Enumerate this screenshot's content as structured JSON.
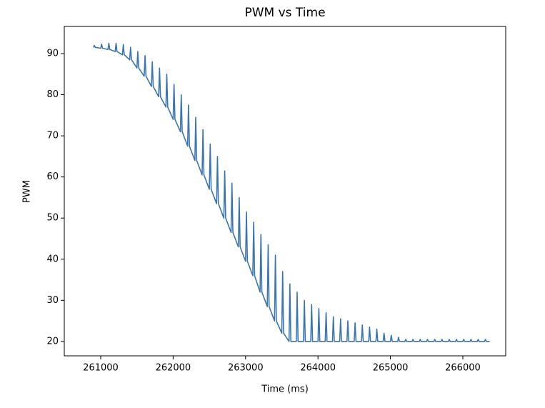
{
  "chart_data": {
    "type": "line",
    "title": "PWM vs Time",
    "xlabel": "Time (ms)",
    "ylabel": "PWM",
    "color": "#3b75af",
    "xlim": [
      260497,
      266592
    ],
    "ylim": [
      16.5,
      96.6
    ],
    "xticks": [
      261000,
      262000,
      263000,
      264000,
      265000,
      266000
    ],
    "yticks": [
      20,
      30,
      40,
      50,
      60,
      70,
      80,
      90
    ],
    "x": [
      260900,
      260912,
      260925,
      261000,
      261012,
      261025,
      261100,
      261112,
      261125,
      261200,
      261212,
      261225,
      261300,
      261312,
      261325,
      261400,
      261412,
      261425,
      261500,
      261512,
      261525,
      261600,
      261612,
      261625,
      261700,
      261712,
      261725,
      261800,
      261812,
      261825,
      261900,
      261912,
      261925,
      262000,
      262012,
      262025,
      262100,
      262112,
      262125,
      262200,
      262212,
      262225,
      262300,
      262312,
      262325,
      262400,
      262412,
      262425,
      262500,
      262512,
      262525,
      262600,
      262612,
      262625,
      262700,
      262712,
      262725,
      262800,
      262812,
      262825,
      262900,
      262912,
      262925,
      263000,
      263012,
      263025,
      263100,
      263112,
      263125,
      263200,
      263212,
      263225,
      263300,
      263312,
      263325,
      263400,
      263412,
      263425,
      263500,
      263512,
      263525,
      263600,
      263612,
      263625,
      263700,
      263712,
      263725,
      263800,
      263812,
      263825,
      263900,
      263912,
      263925,
      264000,
      264012,
      264025,
      264100,
      264112,
      264125,
      264200,
      264212,
      264225,
      264300,
      264312,
      264325,
      264400,
      264412,
      264425,
      264500,
      264512,
      264525,
      264600,
      264612,
      264625,
      264700,
      264712,
      264725,
      264800,
      264812,
      264825,
      264900,
      264912,
      264925,
      265000,
      265012,
      265025,
      265100,
      265112,
      265125,
      265200,
      265212,
      265225,
      265300,
      265312,
      265325,
      265400,
      265412,
      265425,
      265500,
      265512,
      265525,
      265600,
      265612,
      265625,
      265700,
      265712,
      265725,
      265800,
      265812,
      265825,
      265900,
      265912,
      265925,
      266000,
      266012,
      266025,
      266100,
      266112,
      266125,
      266200,
      266212,
      266225,
      266300,
      266312,
      266325,
      266370
    ],
    "values": [
      91.5,
      92,
      91.5,
      91.3,
      92.3,
      91.3,
      91,
      92.5,
      91,
      90.5,
      92.5,
      90.5,
      89.7,
      92.2,
      89.7,
      88.5,
      91.5,
      88.5,
      86.5,
      90.5,
      86.5,
      84.5,
      89.5,
      84.5,
      82,
      88,
      82,
      79.5,
      86.5,
      79.5,
      77,
      85,
      77,
      74,
      82.5,
      74,
      71,
      80,
      71,
      67.5,
      77.5,
      67.5,
      64,
      74.5,
      64,
      60.5,
      71.5,
      60.5,
      57,
      68,
      57,
      53.5,
      65,
      53.5,
      50,
      61.5,
      50,
      46.5,
      58.5,
      46.5,
      43,
      55,
      43,
      39.5,
      51.5,
      39.5,
      36,
      49,
      36,
      32,
      46,
      32,
      28.5,
      43.5,
      28.5,
      25,
      41,
      25,
      22,
      37,
      22,
      20,
      34,
      20,
      20,
      32,
      20,
      20,
      30,
      20,
      20,
      29,
      20,
      20,
      28,
      20,
      20,
      27,
      20,
      20,
      26,
      20,
      20,
      25.5,
      20,
      20,
      25,
      20,
      20,
      24.5,
      20,
      20,
      24,
      20,
      20,
      23.5,
      20,
      20,
      23,
      20,
      20,
      22,
      20,
      20,
      21.5,
      20,
      20,
      21,
      20,
      20,
      20.5,
      20,
      20,
      20.5,
      20,
      20,
      20.5,
      20,
      20,
      20.5,
      20,
      20,
      20.5,
      20,
      20,
      20.5,
      20,
      20,
      20.5,
      20,
      20,
      20.5,
      20,
      20,
      20.5,
      20,
      20,
      20.5,
      20,
      20,
      20.5,
      20,
      20,
      20.5,
      20,
      20
    ]
  }
}
